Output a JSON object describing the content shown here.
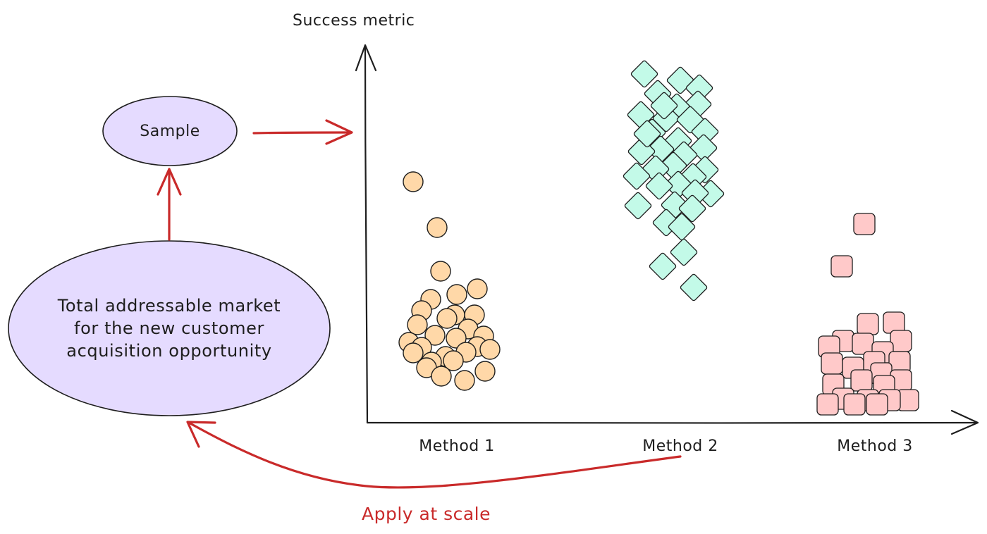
{
  "axis": {
    "y_label": "Success metric"
  },
  "methods": [
    {
      "label": "Method 1",
      "marker": "circle",
      "fill": "#ffd8a8",
      "stroke": "#1e1e1e"
    },
    {
      "label": "Method 2",
      "marker": "diamond",
      "fill": "#c3fae8",
      "stroke": "#1e1e1e"
    },
    {
      "label": "Method 3",
      "marker": "rounded-square",
      "fill": "#ffc9c9",
      "stroke": "#1e1e1e"
    }
  ],
  "nodes": {
    "sample": {
      "label": "Sample",
      "fill": "#e5dbff"
    },
    "tam": {
      "lines": [
        "Total addressable market",
        "for the new customer",
        "acquisition opportunity"
      ],
      "fill": "#e5dbff"
    }
  },
  "edges": {
    "apply_at_scale": {
      "label": "Apply at scale",
      "color": "#c92a2a"
    }
  }
}
